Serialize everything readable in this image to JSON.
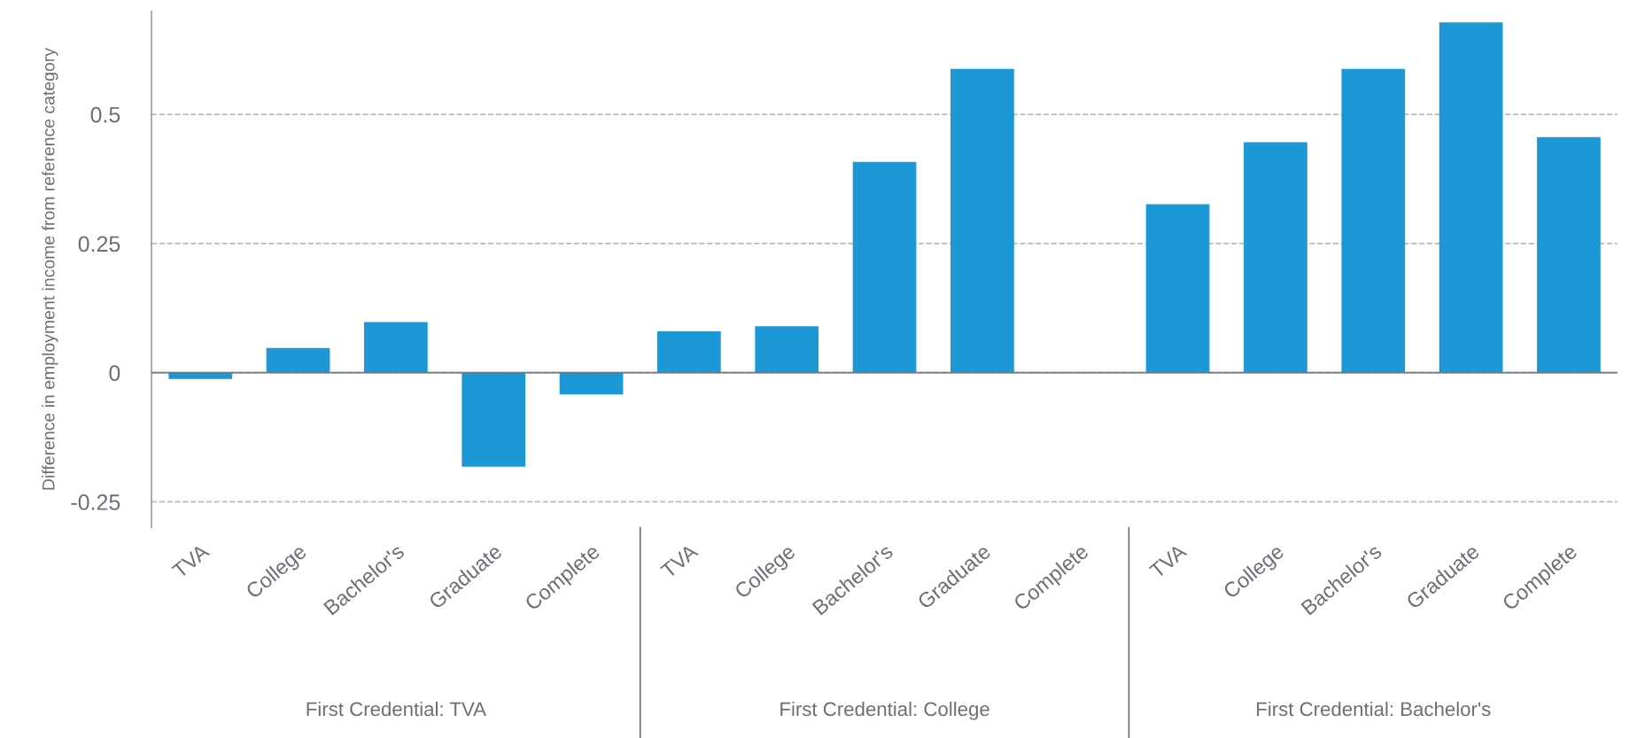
{
  "chart_data": {
    "type": "bar",
    "ylabel": "Difference in employment income from reference category",
    "categories": [
      "TVA",
      "College",
      "Bachelor's",
      "Graduate",
      "Complete",
      "TVA",
      "College",
      "Bachelor's",
      "Graduate",
      "Complete",
      "TVA",
      "College",
      "Bachelor's",
      "Graduate",
      "Complete"
    ],
    "values": [
      -0.012,
      0.048,
      0.098,
      -0.182,
      -0.042,
      0.08,
      0.09,
      0.408,
      0.588,
      0,
      0.326,
      0.446,
      0.588,
      0.678,
      0.456
    ],
    "color": "#1b98d5",
    "ylim": [
      -0.3,
      0.7
    ],
    "yticks": [
      -0.25,
      0,
      0.25,
      0.5
    ],
    "grid": "y",
    "ref_lines": [
      {
        "axis": "y",
        "value": 0,
        "color": "#707780"
      }
    ],
    "annotations": [
      "First Credential: TVA",
      "First Credential: College",
      "First Credential: Bachelor's"
    ]
  }
}
